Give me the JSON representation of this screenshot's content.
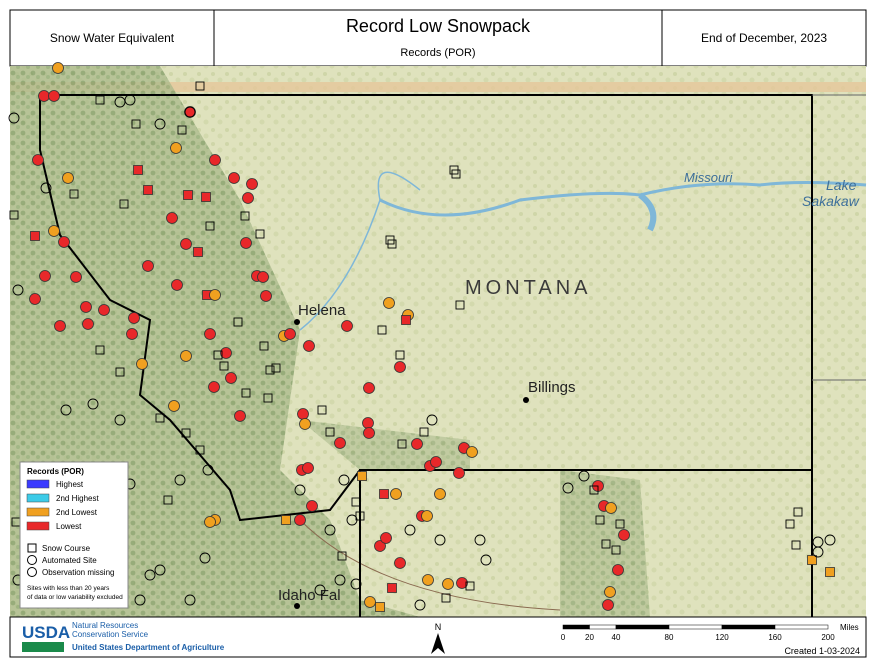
{
  "header": {
    "left": "Snow Water Equivalent",
    "title": "Record Low Snowpack",
    "subtitle": "Records (POR)",
    "right": "End of December, 2023"
  },
  "map": {
    "state": "MONTANA",
    "cities": [
      "Helena",
      "Billings",
      "Idaho Fal"
    ],
    "river": "Missouri",
    "lake": [
      "Lake",
      "Sakakaw"
    ]
  },
  "legend": {
    "title": "Records (POR)",
    "items": [
      {
        "label": "Highest",
        "color": "#3b3bff"
      },
      {
        "label": "2nd Highest",
        "color": "#3ccbe8"
      },
      {
        "label": "2nd Lowest",
        "color": "#f0a020"
      },
      {
        "label": "Lowest",
        "color": "#e8282a"
      }
    ],
    "symbols": [
      "Snow Course",
      "Automated Site",
      "Observation missing"
    ],
    "note": "Sites with less than 20 years of data or low variability excluded"
  },
  "footer": {
    "agency": "USDA",
    "agency_line1": "Natural Resources",
    "agency_line2": "Conservation Service",
    "department": "United States Department of Agriculture",
    "north": "N",
    "scale": [
      "0",
      "20",
      "40",
      "80",
      "120",
      "160",
      "200"
    ],
    "scale_unit": "Miles",
    "created": "Created 1-03-2024"
  }
}
